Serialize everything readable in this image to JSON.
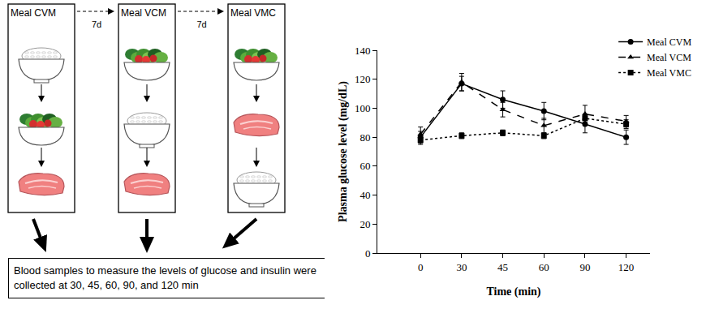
{
  "diagram": {
    "meals": [
      "Meal CVM",
      "Meal VCM",
      "Meal VMC"
    ],
    "intervals": [
      "7d",
      "7d"
    ],
    "note": "Blood samples to measure the levels of glucose and insulin were collected at 30, 45, 60, 90, and 120 min"
  },
  "chart_data": {
    "type": "line",
    "x_label": "Time (min)",
    "y_label": "Plasma glucose level (mg/dL)",
    "categories": [
      "0",
      "30",
      "45",
      "60",
      "90",
      "120"
    ],
    "series": [
      {
        "name": "Meal CVM",
        "color": "#000000",
        "marker": "circle",
        "line_style": "solid",
        "values": [
          80,
          117,
          106,
          98,
          89,
          80
        ],
        "errors": [
          4,
          5,
          6,
          6,
          6,
          5
        ]
      },
      {
        "name": "Meal VCM",
        "color": "#000000",
        "marker": "triangle-up",
        "line_style": "dash",
        "values": [
          82,
          118,
          99,
          88,
          96,
          91
        ],
        "errors": [
          5,
          6,
          5,
          5,
          6,
          4
        ]
      },
      {
        "name": "Meal VMC",
        "color": "#000000",
        "marker": "square",
        "line_style": "dot",
        "values": [
          78,
          81,
          83,
          81,
          93,
          89
        ],
        "errors": [
          3,
          2,
          2,
          2,
          3,
          3
        ]
      }
    ],
    "ylim": [
      0,
      140
    ],
    "yticks": [
      0,
      20,
      40,
      60,
      80,
      100,
      120,
      140
    ],
    "grid": false,
    "legend": "top right"
  }
}
